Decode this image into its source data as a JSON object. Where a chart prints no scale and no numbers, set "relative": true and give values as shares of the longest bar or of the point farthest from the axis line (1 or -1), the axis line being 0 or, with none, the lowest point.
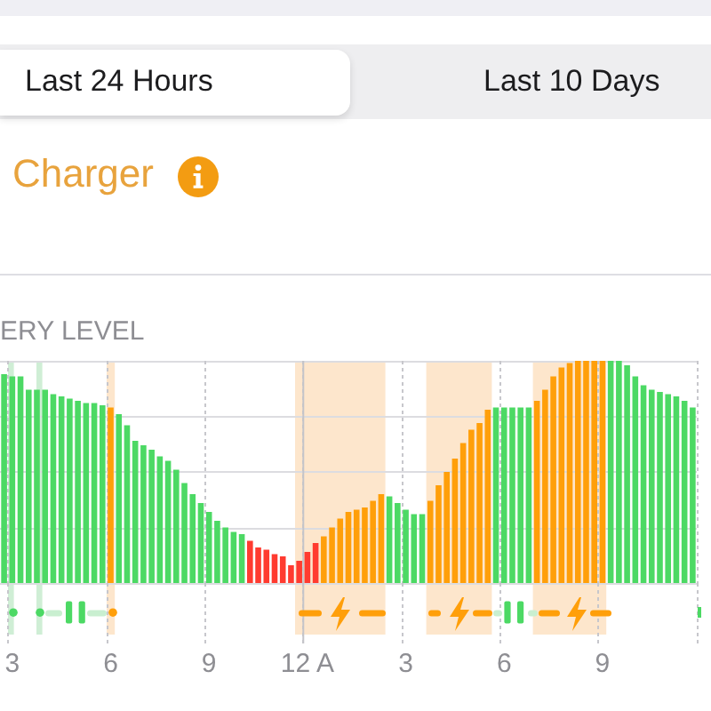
{
  "chart_data": {
    "type": "bar",
    "title": "ERY LEVEL",
    "annotations": [
      "Last 24 Hours",
      "Last 10 Days",
      "Charger"
    ],
    "categories": [
      null,
      "3",
      null,
      null,
      null,
      null,
      null,
      null,
      null,
      null,
      null,
      null,
      null,
      "6",
      null,
      null,
      null,
      null,
      null,
      null,
      null,
      null,
      null,
      null,
      null,
      "9",
      null,
      null,
      null,
      null,
      null,
      null,
      null,
      null,
      null,
      null,
      null,
      "12 A",
      null,
      null,
      null,
      null,
      null,
      null,
      null,
      null,
      null,
      null,
      null,
      "3",
      null,
      null,
      null,
      null,
      null,
      null,
      null,
      null,
      null,
      null,
      null,
      "6",
      null,
      null,
      null,
      null,
      null,
      null,
      null,
      null,
      null,
      null,
      null,
      "9",
      null,
      null,
      null,
      null,
      null,
      null,
      null,
      null,
      null,
      null,
      null
    ],
    "values": [
      0.94,
      0.93,
      0.93,
      0.87,
      0.87,
      0.87,
      0.85,
      0.84,
      0.83,
      0.82,
      0.81,
      0.81,
      0.8,
      0.79,
      0.76,
      0.71,
      0.64,
      0.62,
      0.6,
      0.57,
      0.55,
      0.51,
      0.45,
      0.4,
      0.36,
      0.32,
      0.28,
      0.25,
      0.23,
      0.22,
      0.19,
      0.16,
      0.15,
      0.13,
      0.12,
      0.08,
      0.1,
      0.14,
      0.18,
      0.21,
      0.25,
      0.29,
      0.32,
      0.33,
      0.34,
      0.37,
      0.4,
      0.39,
      0.36,
      0.33,
      0.31,
      0.31,
      0.37,
      0.44,
      0.5,
      0.56,
      0.63,
      0.69,
      0.72,
      0.78,
      0.79,
      0.79,
      0.79,
      0.79,
      0.79,
      0.82,
      0.87,
      0.93,
      0.97,
      0.99,
      1,
      1,
      1,
      1,
      1,
      1,
      0.98,
      0.93,
      0.89,
      0.87,
      0.86,
      0.85,
      0.84,
      0.82,
      0.79
    ],
    "colors": [
      "#4cd964",
      "#4cd964",
      "#4cd964",
      "#4cd964",
      "#4cd964",
      "#4cd964",
      "#4cd964",
      "#4cd964",
      "#4cd964",
      "#4cd964",
      "#4cd964",
      "#4cd964",
      "#4cd964",
      "#ff9f0a",
      "#4cd964",
      "#4cd964",
      "#4cd964",
      "#4cd964",
      "#4cd964",
      "#4cd964",
      "#4cd964",
      "#4cd964",
      "#4cd964",
      "#4cd964",
      "#4cd964",
      "#4cd964",
      "#4cd964",
      "#4cd964",
      "#4cd964",
      "#4cd964",
      "#ff3b30",
      "#ff3b30",
      "#ff3b30",
      "#ff3b30",
      "#ff3b30",
      "#ff3b30",
      "#ff3b30",
      "#ff3b30",
      "#ff3b30",
      "#ff9f0a",
      "#ff9f0a",
      "#ff9f0a",
      "#ff9f0a",
      "#ff9f0a",
      "#ff9f0a",
      "#ff9f0a",
      "#ff9f0a",
      "#4cd964",
      "#4cd964",
      "#4cd964",
      "#4cd964",
      "#4cd964",
      "#ff9f0a",
      "#ff9f0a",
      "#ff9f0a",
      "#ff9f0a",
      "#ff9f0a",
      "#ff9f0a",
      "#ff9f0a",
      "#ff9f0a",
      "#4cd964",
      "#4cd964",
      "#4cd964",
      "#4cd964",
      "#4cd964",
      "#ff9f0a",
      "#ff9f0a",
      "#ff9f0a",
      "#ff9f0a",
      "#ff9f0a",
      "#ff9f0a",
      "#ff9f0a",
      "#ff9f0a",
      "#ff9f0a",
      "#4cd964",
      "#4cd964",
      "#4cd964",
      "#4cd964",
      "#4cd964",
      "#4cd964",
      "#4cd964",
      "#4cd964",
      "#4cd964",
      "#4cd964",
      "#4cd964"
    ],
    "relative": true,
    "grid": true,
    "ref_lines": [
      {
        "axis": "x",
        "value": "12 A",
        "color": "#c4c4c9",
        "line_style": "solid"
      }
    ]
  }
}
